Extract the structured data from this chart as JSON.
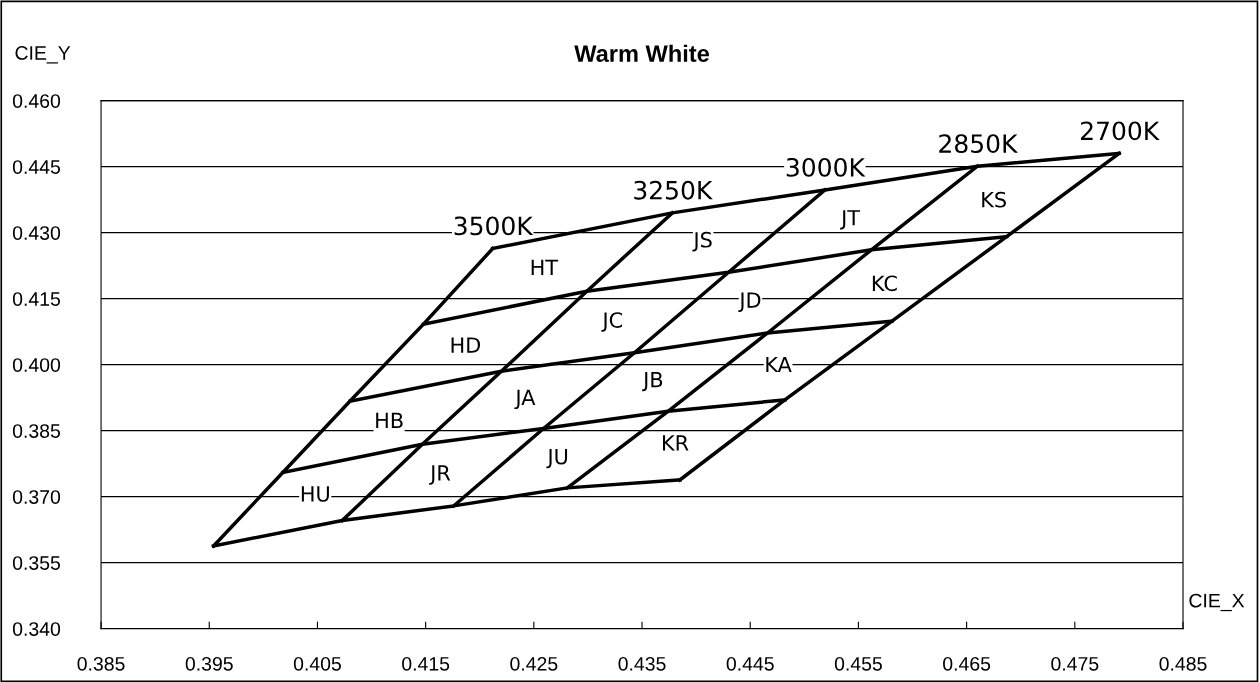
{
  "chart_data": {
    "type": "line",
    "title": "Warm White",
    "xlabel": "CIE_X",
    "ylabel": "CIE_Y",
    "xlim": [
      0.385,
      0.485
    ],
    "xticks": [
      0.385,
      0.395,
      0.405,
      0.415,
      0.425,
      0.435,
      0.445,
      0.455,
      0.465,
      0.475,
      0.485
    ],
    "ylim": [
      0.34,
      0.46
    ],
    "yticks": [
      {
        "value": 0.34,
        "label": "0.340"
      },
      0.355,
      {
        "value": 0.37,
        "label": "0.370"
      },
      0.385,
      {
        "value": 0.4,
        "label": "0.400"
      },
      0.415,
      {
        "value": 0.43,
        "label": "0.430"
      },
      0.445,
      {
        "value": 0.46,
        "label": "0.460"
      }
    ],
    "grid": "y",
    "marker": "none",
    "line_style": "solid",
    "series": [
      {
        "color": "#000000",
        "x": [
          0.4212,
          0.4148,
          0.408,
          0.4018,
          0.3954
        ],
        "values": [
          0.4264,
          0.4092,
          0.3917,
          0.3755,
          0.3588
        ]
      },
      {
        "color": "#000000",
        "x": [
          0.4378,
          0.4299,
          0.422,
          0.4147,
          0.4073
        ],
        "values": [
          0.4345,
          0.4167,
          0.3985,
          0.3819,
          0.3646
        ]
      },
      {
        "color": "#000000",
        "x": [
          0.4519,
          0.443,
          0.4343,
          0.4259,
          0.4176
        ],
        "values": [
          0.4397,
          0.421,
          0.4027,
          0.3855,
          0.3679
        ]
      },
      {
        "color": "#000000",
        "x": [
          0.466,
          0.4562,
          0.4466,
          0.4374,
          0.4281
        ],
        "values": [
          0.4451,
          0.4261,
          0.4072,
          0.3894,
          0.372
        ]
      },
      {
        "color": "#000000",
        "x": [
          0.4791,
          0.4687,
          0.4581,
          0.4482,
          0.4385
        ],
        "values": [
          0.448,
          0.4291,
          0.4099,
          0.392,
          0.3738
        ]
      },
      {
        "color": "#000000",
        "x": [
          0.4212,
          0.4378,
          0.4519,
          0.466,
          0.4791
        ],
        "values": [
          0.4264,
          0.4345,
          0.4397,
          0.4451,
          0.448
        ]
      },
      {
        "color": "#000000",
        "x": [
          0.4148,
          0.4299,
          0.443,
          0.4562,
          0.4687
        ],
        "values": [
          0.4092,
          0.4167,
          0.421,
          0.4261,
          0.4291
        ]
      },
      {
        "color": "#000000",
        "x": [
          0.408,
          0.422,
          0.4343,
          0.4466,
          0.4581
        ],
        "values": [
          0.3917,
          0.3985,
          0.4027,
          0.4072,
          0.4099
        ]
      },
      {
        "color": "#000000",
        "x": [
          0.4018,
          0.4147,
          0.4259,
          0.4374,
          0.4482
        ],
        "values": [
          0.3755,
          0.3819,
          0.3855,
          0.3894,
          0.392
        ]
      },
      {
        "color": "#000000",
        "x": [
          0.3954,
          0.4073,
          0.4176,
          0.4281,
          0.4385
        ],
        "values": [
          0.3588,
          0.3646,
          0.3679,
          0.372,
          0.3738
        ]
      }
    ],
    "annotations": [
      "3500K",
      "3250K",
      "3000K",
      "2850K",
      "2700K",
      "HT",
      "HD",
      "HB",
      "HU",
      "JS",
      "JC",
      "JA",
      "JR",
      "JT",
      "JD",
      "JB",
      "JU",
      "KS",
      "KC",
      "KA",
      "KR"
    ]
  }
}
